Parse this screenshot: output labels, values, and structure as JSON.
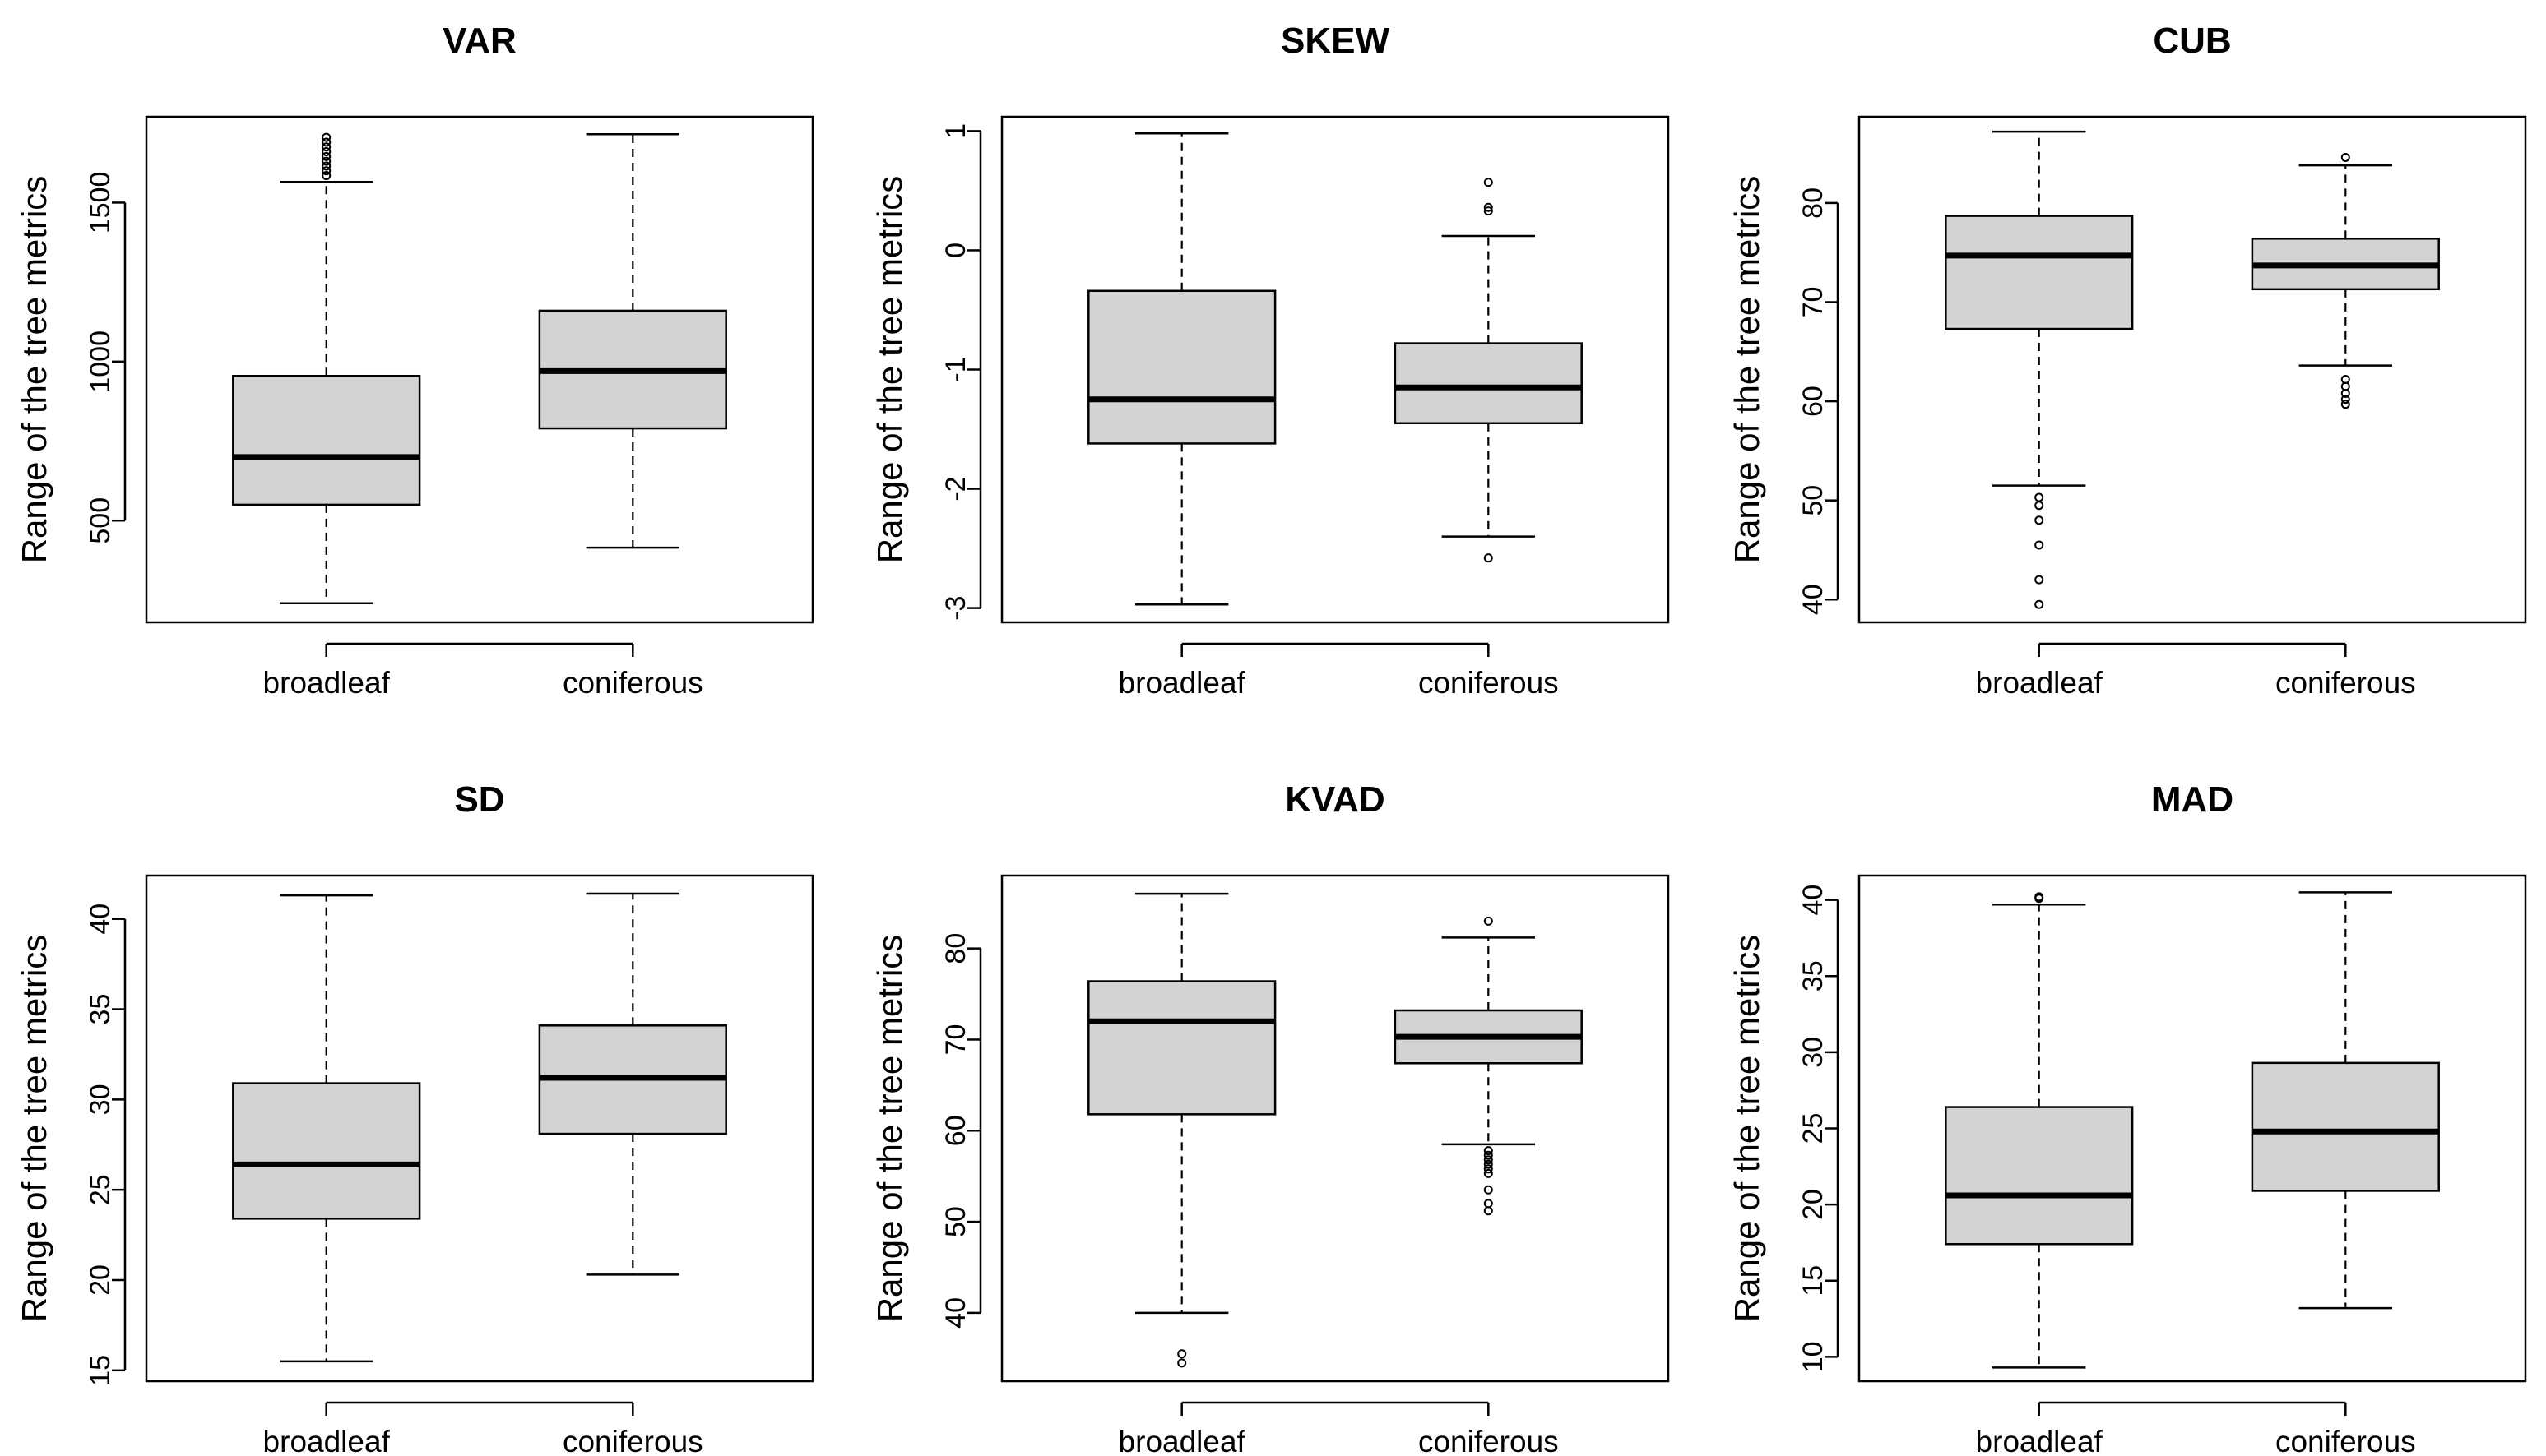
{
  "figure": {
    "ylabel": "Range of the tree metrics",
    "box_fill": "#d3d3d3",
    "line_color": "#000000"
  },
  "chart_data": [
    {
      "type": "boxplot",
      "title": "VAR",
      "ylabel": "Range of the tree metrics",
      "categories": [
        "broadleaf",
        "coniferous"
      ],
      "ylim": [
        180,
        1770
      ],
      "yticks": [
        500,
        1000,
        1500
      ],
      "boxes": [
        {
          "category": "broadleaf",
          "whisker_low": 240,
          "q1": 550,
          "median": 700,
          "q3": 955,
          "whisker_high": 1565,
          "outliers": [
            1585,
            1600,
            1615,
            1630,
            1645,
            1660,
            1675,
            1690,
            1705
          ]
        },
        {
          "category": "coniferous",
          "whisker_low": 415,
          "q1": 790,
          "median": 970,
          "q3": 1160,
          "whisker_high": 1715,
          "outliers": []
        }
      ]
    },
    {
      "type": "boxplot",
      "title": "SKEW",
      "ylabel": "Range of the tree metrics",
      "categories": [
        "broadleaf",
        "coniferous"
      ],
      "ylim": [
        -3.12,
        1.12
      ],
      "yticks": [
        -3,
        -2,
        -1,
        0,
        1
      ],
      "boxes": [
        {
          "category": "broadleaf",
          "whisker_low": -2.97,
          "q1": -1.62,
          "median": -1.25,
          "q3": -0.34,
          "whisker_high": 0.98,
          "outliers": []
        },
        {
          "category": "coniferous",
          "whisker_low": -2.4,
          "q1": -1.45,
          "median": -1.15,
          "q3": -0.78,
          "whisker_high": 0.12,
          "outliers": [
            -2.58,
            0.33,
            0.36,
            0.57
          ]
        }
      ]
    },
    {
      "type": "boxplot",
      "title": "CUB",
      "ylabel": "Range of the tree metrics",
      "categories": [
        "broadleaf",
        "coniferous"
      ],
      "ylim": [
        37.7,
        88.7
      ],
      "yticks": [
        40,
        50,
        60,
        70,
        80
      ],
      "boxes": [
        {
          "category": "broadleaf",
          "whisker_low": 51.5,
          "q1": 67.3,
          "median": 74.7,
          "q3": 78.7,
          "whisker_high": 87.2,
          "outliers": [
            39.5,
            42,
            45.5,
            48,
            49.5,
            50.3
          ]
        },
        {
          "category": "coniferous",
          "whisker_low": 63.6,
          "q1": 71.3,
          "median": 73.7,
          "q3": 76.4,
          "whisker_high": 83.8,
          "outliers": [
            59.7,
            60.2,
            60.8,
            61.5,
            62.2,
            84.6
          ]
        }
      ]
    },
    {
      "type": "boxplot",
      "title": "SD",
      "ylabel": "Range of the tree metrics",
      "categories": [
        "broadleaf",
        "coniferous"
      ],
      "ylim": [
        14.4,
        42.4
      ],
      "yticks": [
        15,
        20,
        25,
        30,
        35,
        40
      ],
      "boxes": [
        {
          "category": "broadleaf",
          "whisker_low": 15.5,
          "q1": 23.4,
          "median": 26.4,
          "q3": 30.9,
          "whisker_high": 41.3,
          "outliers": []
        },
        {
          "category": "coniferous",
          "whisker_low": 20.3,
          "q1": 28.1,
          "median": 31.2,
          "q3": 34.1,
          "whisker_high": 41.4,
          "outliers": []
        }
      ]
    },
    {
      "type": "boxplot",
      "title": "KVAD",
      "ylabel": "Range of the tree metrics",
      "categories": [
        "broadleaf",
        "coniferous"
      ],
      "ylim": [
        32.5,
        88
      ],
      "yticks": [
        40,
        50,
        60,
        70,
        80
      ],
      "boxes": [
        {
          "category": "broadleaf",
          "whisker_low": 40,
          "q1": 61.8,
          "median": 72,
          "q3": 76.4,
          "whisker_high": 86,
          "outliers": [
            34.5,
            35.5
          ]
        },
        {
          "category": "coniferous",
          "whisker_low": 58.5,
          "q1": 67.4,
          "median": 70.3,
          "q3": 73.2,
          "whisker_high": 81.2,
          "outliers": [
            51.2,
            52,
            53.5,
            55.3,
            55.8,
            56.3,
            56.8,
            57.3,
            57.8,
            83
          ]
        }
      ]
    },
    {
      "type": "boxplot",
      "title": "MAD",
      "ylabel": "Range of the tree metrics",
      "categories": [
        "broadleaf",
        "coniferous"
      ],
      "ylim": [
        8.4,
        41.6
      ],
      "yticks": [
        10,
        15,
        20,
        25,
        30,
        35,
        40
      ],
      "boxes": [
        {
          "category": "broadleaf",
          "whisker_low": 9.3,
          "q1": 17.4,
          "median": 20.6,
          "q3": 26.4,
          "whisker_high": 39.7,
          "outliers": [
            40.1,
            40.2
          ]
        },
        {
          "category": "coniferous",
          "whisker_low": 13.2,
          "q1": 20.9,
          "median": 24.8,
          "q3": 29.3,
          "whisker_high": 40.5,
          "outliers": []
        }
      ]
    }
  ]
}
